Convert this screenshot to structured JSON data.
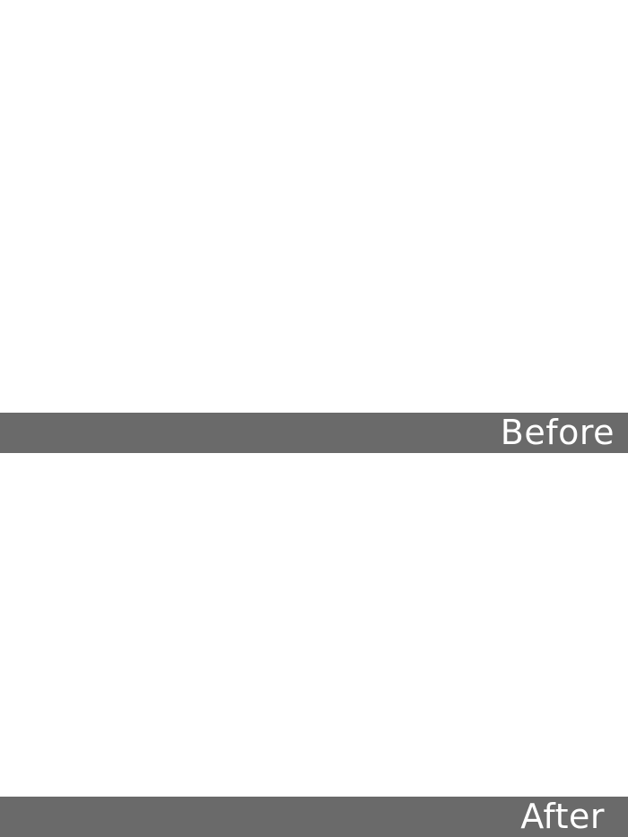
{
  "labels": {
    "before": "Before",
    "after": "After"
  },
  "colors": {
    "background": "#ffffff",
    "label_bar": "#6a6a6a",
    "label_text": "#ffffff"
  }
}
